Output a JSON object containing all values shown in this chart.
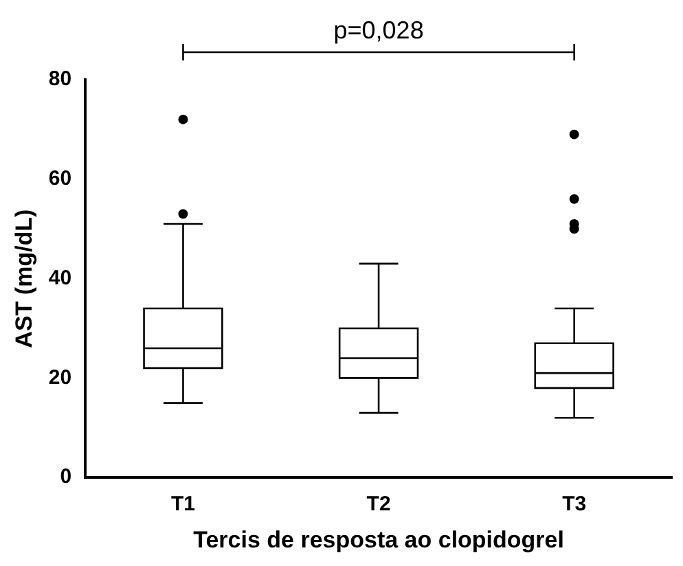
{
  "chart_data": {
    "type": "box",
    "ylabel": "AST (mg/dL)",
    "xlabel": "Tercis de resposta ao clopidogrel",
    "categories": [
      "T1",
      "T2",
      "T3"
    ],
    "boxes": [
      {
        "low": 15,
        "q1": 22,
        "median": 26,
        "q3": 34,
        "high": 51,
        "outliers": [
          53,
          72
        ]
      },
      {
        "low": 13,
        "q1": 20,
        "median": 24,
        "q3": 30,
        "high": 43
      },
      {
        "low": 12,
        "q1": 18,
        "median": 21,
        "q3": 27,
        "high": 34,
        "outliers": [
          50,
          51,
          56,
          69
        ]
      }
    ],
    "color": "#000000",
    "ylim": [
      0,
      80
    ],
    "yticks": [
      0,
      20,
      40,
      60,
      80
    ],
    "grid": false,
    "legend": false,
    "annotations": [
      "p=0,028"
    ]
  }
}
